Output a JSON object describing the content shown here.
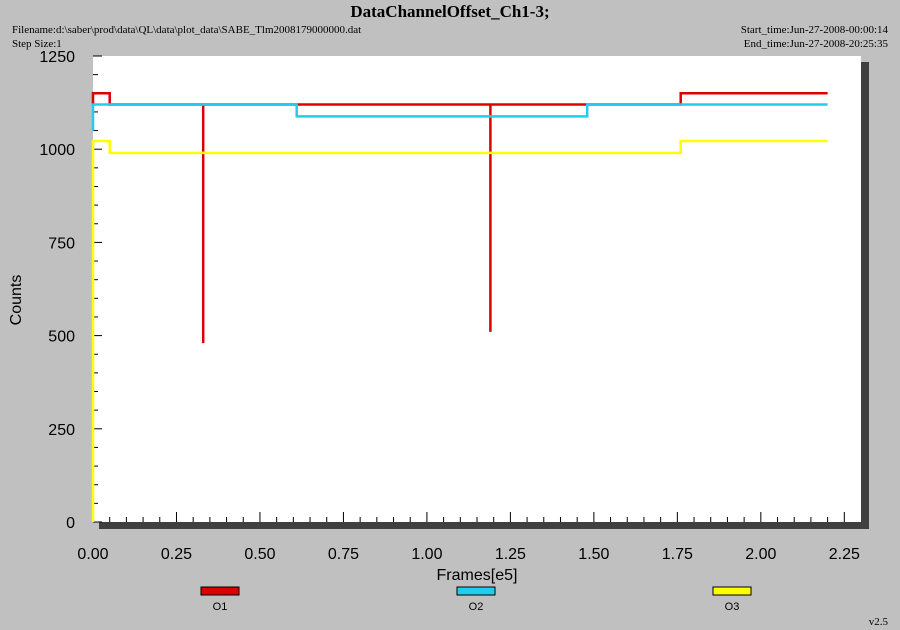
{
  "header": {
    "title": "DataChannelOffset_Ch1-3;",
    "filename": "Filename:d:\\saber\\prod\\data\\QL\\data\\plot_data\\SABE_Tlm2008179000000.dat",
    "step_size": "Step Size:1",
    "start_time": "Start_time:Jun-27-2008-00:00:14",
    "end_time": "End_time:Jun-27-2008-20:25:35"
  },
  "footer": {
    "version": "v2.5"
  },
  "colors": {
    "background": "#c0c0c0",
    "plot_bg": "#ffffff",
    "shadow": "#404040"
  },
  "chart_data": {
    "type": "line",
    "title": "DataChannelOffset_Ch1-3;",
    "xlabel": "Frames[e5]",
    "ylabel": "Counts",
    "xlim": [
      0,
      2.3
    ],
    "ylim": [
      0,
      1250
    ],
    "xticks": [
      "0.00",
      "0.25",
      "0.50",
      "0.75",
      "1.00",
      "1.25",
      "1.50",
      "1.75",
      "2.00",
      "2.25"
    ],
    "yticks": [
      "0",
      "250",
      "500",
      "750",
      "1000",
      "1250"
    ],
    "grid": false,
    "legend_position": "bottom",
    "series": [
      {
        "name": "O1",
        "color": "#dd0000",
        "points": [
          [
            0.0,
            1120
          ],
          [
            0.0,
            1150
          ],
          [
            0.05,
            1150
          ],
          [
            0.05,
            1120
          ],
          [
            0.33,
            1120
          ],
          [
            0.33,
            480
          ],
          [
            0.33,
            1120
          ],
          [
            1.19,
            1120
          ],
          [
            1.19,
            510
          ],
          [
            1.19,
            1120
          ],
          [
            1.76,
            1120
          ],
          [
            1.76,
            1150
          ],
          [
            2.2,
            1150
          ]
        ]
      },
      {
        "name": "O2",
        "color": "#22ccee",
        "points": [
          [
            0.0,
            1050
          ],
          [
            0.0,
            1120
          ],
          [
            0.61,
            1120
          ],
          [
            0.61,
            1088
          ],
          [
            1.48,
            1088
          ],
          [
            1.48,
            1120
          ],
          [
            2.2,
            1120
          ]
        ]
      },
      {
        "name": "O3",
        "color": "#ffff00",
        "points": [
          [
            0.0,
            0
          ],
          [
            0.0,
            1022
          ],
          [
            0.05,
            1022
          ],
          [
            0.05,
            990
          ],
          [
            1.76,
            990
          ],
          [
            1.76,
            1022
          ],
          [
            2.2,
            1022
          ]
        ]
      }
    ]
  }
}
